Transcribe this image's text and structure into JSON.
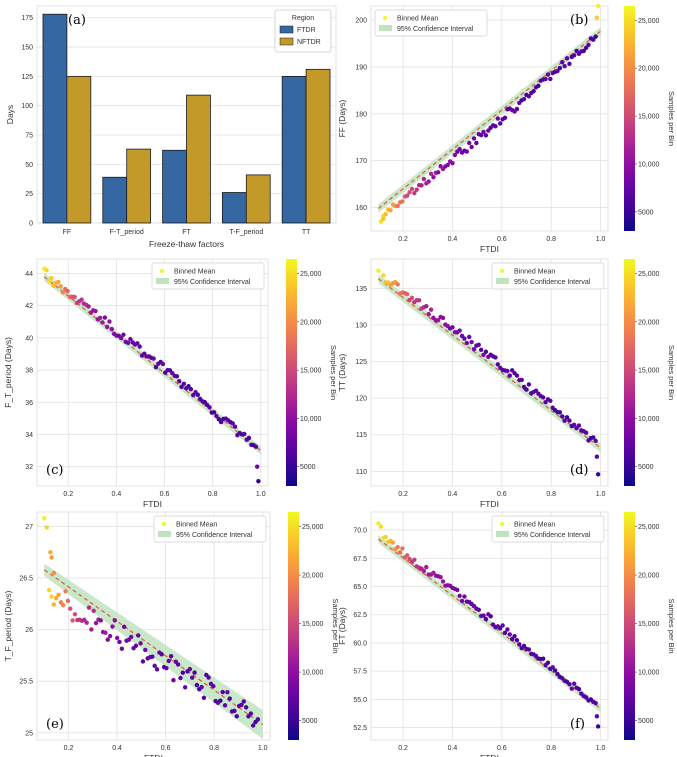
{
  "colors": {
    "ftdr": "#3568a3",
    "nftdr": "#c39a2a",
    "band": "#bfe3bf",
    "fit_line": "#d95a3a",
    "grid": "#e2e2e2",
    "colormap": "plasma"
  },
  "chart_data": [
    {
      "id": "a",
      "type": "bar",
      "panel_letter": "(a)",
      "categories": [
        "FF",
        "F-T_period",
        "FT",
        "T-F_period",
        "TT"
      ],
      "series": [
        {
          "name": "FTDR",
          "values": [
            178,
            39,
            62,
            26,
            125
          ]
        },
        {
          "name": "NFTDR",
          "values": [
            125,
            63,
            109,
            41,
            131
          ]
        }
      ],
      "xlabel": "Freeze-thaw factors",
      "ylabel": "Days",
      "ylim": [
        0,
        185
      ],
      "yticks": [
        0,
        25,
        50,
        75,
        100,
        125,
        150,
        175
      ],
      "legend_title": "Region",
      "legend_position": "top-right",
      "grid": true
    },
    {
      "id": "b",
      "type": "scatter",
      "panel_letter": "(b)",
      "xlabel": "FTDI",
      "ylabel": "FF (Days)",
      "xlim": [
        0.07,
        1.03
      ],
      "ylim": [
        155,
        203
      ],
      "xticks": [
        0.2,
        0.4,
        0.6,
        0.8,
        1.0
      ],
      "yticks": [
        160,
        170,
        180,
        190,
        200
      ],
      "legend": [
        "Binned Mean",
        "95% Confidence Interval"
      ],
      "legend_position": "top-left",
      "colorbar_label": "Samples per Bin",
      "colorbar_range": [
        3000,
        26500
      ],
      "colorbar_ticks": [
        "5000",
        "10,000",
        "15,000",
        "20,000",
        "25,000"
      ],
      "fit": {
        "y_start": 159.8,
        "y_end": 197.6,
        "ci_half": 0.9
      },
      "curve": {
        "type": "poly",
        "y_start": 158.5,
        "y_end": 196.5,
        "a2": 3,
        "a3": -10,
        "noise": 0.9
      },
      "extras": [
        [
          0.99,
          203.0,
          26000
        ],
        [
          0.985,
          200.5,
          24000
        ],
        [
          0.11,
          157.0,
          25000
        ],
        [
          0.12,
          157.6,
          23500
        ]
      ],
      "grid": true
    },
    {
      "id": "c",
      "type": "scatter",
      "panel_letter": "(c)",
      "xlabel": "FTDI",
      "ylabel": "F_T_period (Days)",
      "xlim": [
        0.07,
        1.03
      ],
      "ylim": [
        30.8,
        44.9
      ],
      "xticks": [
        0.2,
        0.4,
        0.6,
        0.8,
        1.0
      ],
      "yticks": [
        32,
        34,
        36,
        38,
        40,
        42,
        44
      ],
      "legend": [
        "Binned Mean",
        "95% Confidence Interval"
      ],
      "legend_position": "top-right",
      "colorbar_label": "Samples per Bin",
      "colorbar_range": [
        3000,
        26500
      ],
      "colorbar_ticks": [
        "5000",
        "10,000",
        "15,000",
        "20,000",
        "25,000"
      ],
      "fit": {
        "y_start": 43.8,
        "y_end": 33.0,
        "ci_half": 0.25
      },
      "curve": {
        "type": "poly",
        "y_start": 43.7,
        "y_end": 33.2,
        "a2": 3,
        "a3": -10,
        "noise": 0.3
      },
      "extras": [
        [
          0.1,
          44.3,
          26000
        ],
        [
          0.11,
          44.2,
          24500
        ],
        [
          0.985,
          32.0,
          8000
        ],
        [
          0.99,
          31.1,
          5000
        ]
      ],
      "grid": true
    },
    {
      "id": "d",
      "type": "scatter",
      "panel_letter": "(d)",
      "xlabel": "FTDI",
      "ylabel": "TT (Days)",
      "xlim": [
        0.07,
        1.03
      ],
      "ylim": [
        108,
        139
      ],
      "xticks": [
        0.2,
        0.4,
        0.6,
        0.8,
        1.0
      ],
      "yticks": [
        110,
        115,
        120,
        125,
        130,
        135
      ],
      "legend": [
        "Binned Mean",
        "95% Confidence Interval"
      ],
      "legend_position": "top-right",
      "colorbar_label": "Samples per Bin",
      "colorbar_range": [
        3000,
        26500
      ],
      "colorbar_ticks": [
        "5000",
        "10,000",
        "15,000",
        "20,000",
        "25,000"
      ],
      "fit": {
        "y_start": 136.3,
        "y_end": 113.2,
        "ci_half": 0.6
      },
      "curve": {
        "type": "poly",
        "y_start": 136.5,
        "y_end": 114.0,
        "a2": 4,
        "a3": -10,
        "noise": 0.6
      },
      "extras": [
        [
          0.1,
          137.4,
          26000
        ],
        [
          0.985,
          112.0,
          7000
        ],
        [
          0.99,
          109.6,
          5000
        ]
      ],
      "grid": true
    },
    {
      "id": "e",
      "type": "scatter",
      "panel_letter": "(e)",
      "xlabel": "FTDI",
      "ylabel": "T_F_period (Days)",
      "xlim": [
        0.07,
        1.03
      ],
      "ylim": [
        24.93,
        27.14
      ],
      "xticks": [
        0.2,
        0.4,
        0.6,
        0.8,
        1.0
      ],
      "yticks": [
        25.0,
        25.5,
        26.0,
        26.5,
        27.0
      ],
      "legend": [
        "Binned Mean",
        "95% Confidence Interval"
      ],
      "legend_position": "top-right",
      "colorbar_label": "Samples per Bin",
      "colorbar_range": [
        3000,
        26500
      ],
      "colorbar_ticks": [
        "5000",
        "10,000",
        "15,000",
        "20,000",
        "25,000"
      ],
      "fit": {
        "y_start": 26.58,
        "y_end": 25.08,
        "ci_half": 0.06,
        "ci_half_end": 0.14
      },
      "curve": {
        "type": "linear",
        "y_start": 26.35,
        "y_end": 25.15,
        "noise": 0.13
      },
      "extras": [
        [
          0.1,
          27.08,
          26000
        ],
        [
          0.11,
          26.99,
          24500
        ],
        [
          0.125,
          26.75,
          22000
        ],
        [
          0.13,
          26.7,
          21000
        ],
        [
          0.14,
          26.55,
          20000
        ]
      ],
      "grid": true
    },
    {
      "id": "f",
      "type": "scatter",
      "panel_letter": "(f)",
      "xlabel": "FTDI",
      "ylabel": "FT (Days)",
      "xlim": [
        0.07,
        1.03
      ],
      "ylim": [
        51.4,
        71.6
      ],
      "xticks": [
        0.2,
        0.4,
        0.6,
        0.8,
        1.0
      ],
      "yticks": [
        52.5,
        55.0,
        57.5,
        60.0,
        62.5,
        65.0,
        67.5,
        70.0
      ],
      "ytick_labels": [
        "52.5",
        "55.0",
        "57.5",
        "60.0",
        "62.5",
        "65.0",
        "67.5",
        "70.0"
      ],
      "legend": [
        "Binned Mean",
        "95% Confidence Interval"
      ],
      "legend_position": "top-right",
      "colorbar_label": "Samples per Bin",
      "colorbar_range": [
        3000,
        26500
      ],
      "colorbar_ticks": [
        "5000",
        "10,000",
        "15,000",
        "20,000",
        "25,000"
      ],
      "fit": {
        "y_start": 69.2,
        "y_end": 54.2,
        "ci_half": 0.35
      },
      "curve": {
        "type": "poly",
        "y_start": 69.3,
        "y_end": 54.5,
        "a2": 3,
        "a3": -9,
        "noise": 0.35
      },
      "extras": [
        [
          0.1,
          70.6,
          26000
        ],
        [
          0.11,
          70.3,
          25000
        ],
        [
          0.985,
          53.5,
          7000
        ],
        [
          0.99,
          52.6,
          5000
        ]
      ],
      "grid": true
    }
  ]
}
